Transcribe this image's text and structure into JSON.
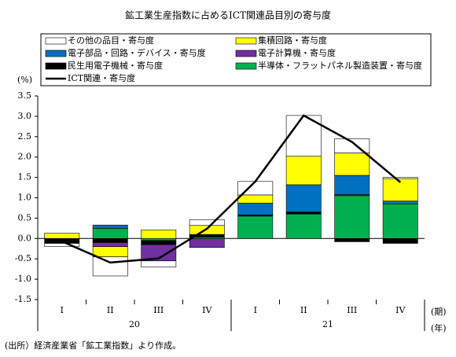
{
  "chart_data": {
    "type": "bar",
    "title": "鉱工業生産指数に占めるICT関連品目別の寄与度",
    "y_unit": "(%)",
    "x_unit": "(期)",
    "year_unit": "(年)",
    "source": "(出所）経済産業省「鉱工業指数」より作成。",
    "categories": [
      "I",
      "II",
      "III",
      "IV",
      "I",
      "II",
      "III",
      "IV"
    ],
    "years": [
      "20",
      "21"
    ],
    "series": [
      {
        "name": "その他の品目・寄与度",
        "color": "#ffffff",
        "values": [
          -0.08,
          -0.47,
          -0.15,
          0.14,
          0.33,
          1.0,
          0.35,
          0.03
        ]
      },
      {
        "name": "集積回路・寄与度",
        "color": "#ffff00",
        "values": [
          0.13,
          -0.25,
          0.21,
          0.22,
          0.2,
          0.7,
          0.55,
          0.55
        ]
      },
      {
        "name": "電子部品・回路・デバイス・寄与度",
        "color": "#0070c0",
        "values": [
          0,
          0.08,
          0,
          0,
          0.29,
          0.67,
          0.47,
          0.07
        ]
      },
      {
        "name": "電子計算機・寄与度",
        "color": "#7030a0",
        "values": [
          0,
          -0.1,
          -0.4,
          -0.22,
          0,
          0,
          0.03,
          0
        ]
      },
      {
        "name": "民生用電子機械・寄与度",
        "color": "#000000",
        "values": [
          -0.12,
          -0.1,
          -0.1,
          0.07,
          0.03,
          0.05,
          -0.08,
          -0.12
        ]
      },
      {
        "name": "半導体・フラットパネル製造装置・寄与度",
        "color": "#00b050",
        "values": [
          0,
          0.25,
          -0.05,
          0.03,
          0.55,
          0.6,
          1.05,
          0.85
        ]
      },
      {
        "name": "ICT関連・寄与度",
        "color": "#000000",
        "type": "line",
        "values": [
          -0.07,
          -0.59,
          -0.49,
          0.24,
          1.4,
          3.02,
          2.37,
          1.38
        ]
      }
    ],
    "stack_order": [
      5,
      4,
      3,
      2,
      1,
      0
    ],
    "ylim": [
      -1.5,
      3.5
    ],
    "yticks": [
      {
        "value": 3.5,
        "label": "3.5"
      },
      {
        "value": 3.0,
        "label": "3.0"
      },
      {
        "value": 2.5,
        "label": "2.5"
      },
      {
        "value": 2.0,
        "label": "2.0"
      },
      {
        "value": 1.5,
        "label": "1.5"
      },
      {
        "value": 1.0,
        "label": "1.0"
      },
      {
        "value": 0.5,
        "label": "0.5"
      },
      {
        "value": 0,
        "label": "0.0"
      },
      {
        "value": -0.5,
        "label": "-0.5"
      },
      {
        "value": -1.0,
        "label": "-1.0"
      },
      {
        "value": -1.5,
        "label": "-1.5"
      }
    ]
  }
}
